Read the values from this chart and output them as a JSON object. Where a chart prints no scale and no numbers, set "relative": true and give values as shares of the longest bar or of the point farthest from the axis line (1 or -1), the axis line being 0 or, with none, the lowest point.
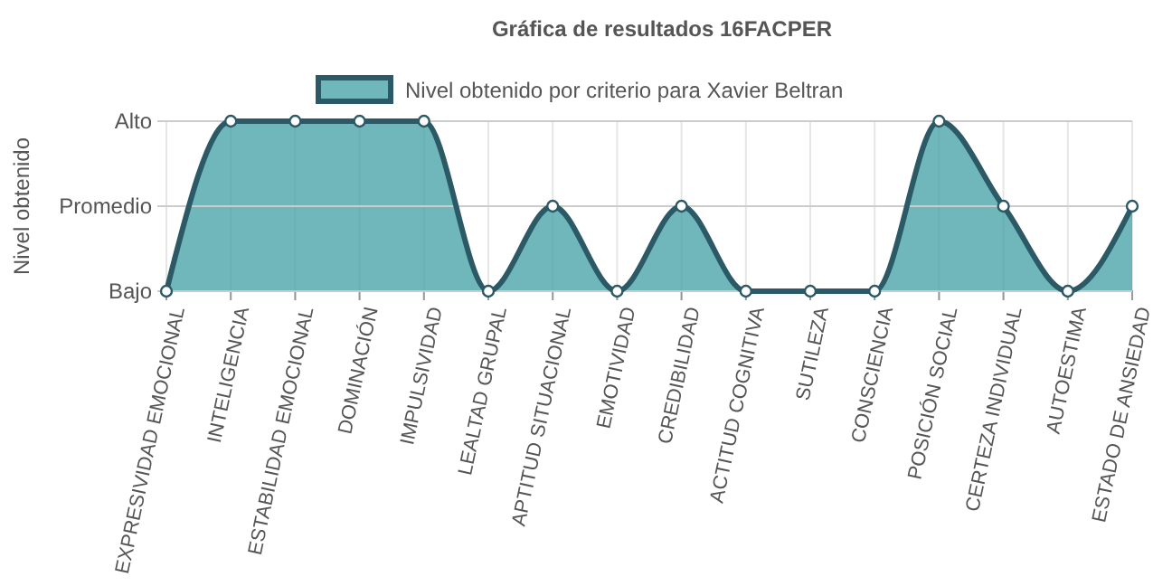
{
  "chart_data": {
    "type": "area",
    "title": "Gráfica de resultados 16FACPER",
    "ylabel": "Nivel obtenido",
    "categories": [
      "EXPRESIVIDAD EMOCIONAL",
      "INTELIGENCIA",
      "ESTABILIDAD EMOCIONAL",
      "DOMINACIÓN",
      "IMPULSIVIDAD",
      "LEALTAD GRUPAL",
      "APTITUD SITUACIONAL",
      "EMOTIVIDAD",
      "CREDIBILIDAD",
      "ACTITUD COGNITIVA",
      "SUTILEZA",
      "CONSCIENCIA",
      "POSICIÓN SOCIAL",
      "CERTEZA INDIVIDUAL",
      "AUTOESTIMA",
      "ESTADO DE ANSIEDAD"
    ],
    "series": [
      {
        "name": "Nivel obtenido por criterio para Xavier Beltran",
        "color": "#2b5966",
        "values": [
          0,
          1,
          1,
          1,
          1,
          0,
          0.5,
          0,
          0.5,
          0,
          0,
          0,
          1,
          0.5,
          0,
          0.5
        ]
      }
    ],
    "relative": true,
    "ref_lines": [
      {
        "axis": "y",
        "value": 0,
        "label": "Bajo",
        "color": "#cccccc"
      },
      {
        "axis": "y",
        "value": 0.5,
        "label": "Promedio",
        "color": "#cccccc"
      },
      {
        "axis": "y",
        "value": 1,
        "label": "Alto",
        "color": "#cccccc"
      }
    ],
    "grid": true,
    "legend": "top",
    "marker": "circle",
    "line_style": "solid"
  }
}
